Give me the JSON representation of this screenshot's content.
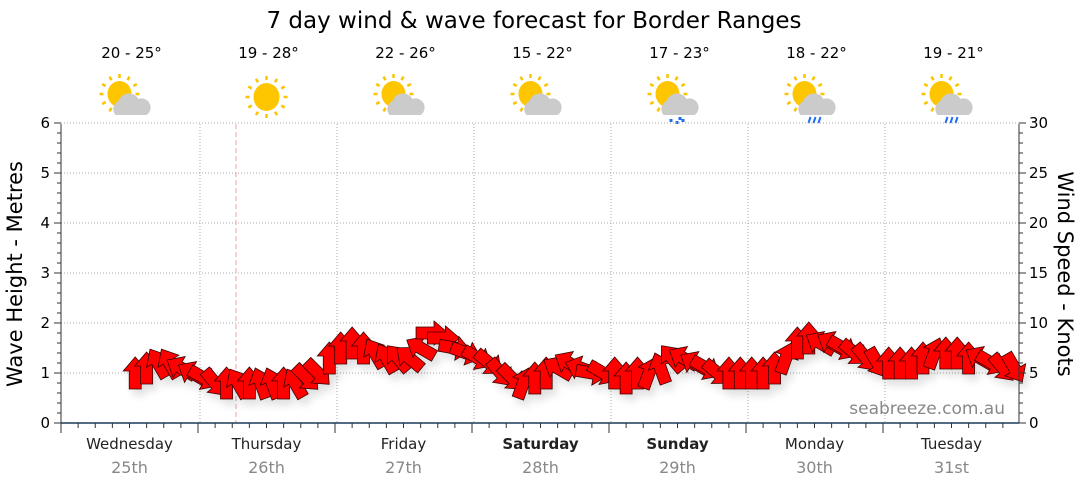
{
  "chart_data": {
    "type": "scatter",
    "title": "7 day wind & wave forecast for Border Ranges",
    "ylabel_left": "Wave Height - Metres",
    "ylabel_right": "Wind Speed - Knots",
    "ylim_left": [
      0,
      6
    ],
    "ylim_right": [
      0,
      30
    ],
    "yticks_left": [
      "0",
      "1",
      "2",
      "3",
      "4",
      "5",
      "6"
    ],
    "yticks_right": [
      "0",
      "5",
      "10",
      "15",
      "20",
      "25",
      "30"
    ],
    "grid": true,
    "watermark": "seabreeze.com.au",
    "days": [
      {
        "name": "Wednesday",
        "date": "25th",
        "bold": false,
        "temp": "20 - 25°",
        "icon": "sun-cloud-icon"
      },
      {
        "name": "Thursday",
        "date": "26th",
        "bold": false,
        "temp": "19 - 28°",
        "icon": "sun-icon"
      },
      {
        "name": "Friday",
        "date": "27th",
        "bold": false,
        "temp": "22 - 26°",
        "icon": "sun-cloud-icon"
      },
      {
        "name": "Saturday",
        "date": "28th",
        "bold": true,
        "temp": "15 - 22°",
        "icon": "sun-cloud-icon"
      },
      {
        "name": "Sunday",
        "date": "29th",
        "bold": true,
        "temp": "17 - 23°",
        "icon": "sun-cloud-drizzle-icon"
      },
      {
        "name": "Monday",
        "date": "30th",
        "bold": false,
        "temp": "18 - 22°",
        "icon": "sun-cloud-rain-icon"
      },
      {
        "name": "Tuesday",
        "date": "31st",
        "bold": false,
        "temp": "19 - 21°",
        "icon": "sun-cloud-rain-icon"
      }
    ],
    "now_hour": 31,
    "wind_series": {
      "name": "Wind (knots, arrow direction degrees)",
      "hours": [
        13,
        15,
        17,
        19,
        21,
        23,
        25,
        27,
        29,
        31,
        33,
        35,
        37,
        39,
        41,
        43,
        45,
        47,
        49,
        51,
        53,
        55,
        57,
        59,
        61,
        63,
        65,
        67,
        69,
        71,
        73,
        75,
        77,
        79,
        81,
        83,
        85,
        87,
        89,
        91,
        93,
        95,
        97,
        99,
        101,
        103,
        105,
        107,
        109,
        111,
        113,
        115,
        117,
        119,
        121,
        123,
        125,
        127,
        129,
        131,
        133,
        135,
        137,
        139,
        141,
        143,
        145,
        147,
        149,
        151,
        153,
        155,
        157,
        159,
        161,
        163,
        165,
        167
      ],
      "speed": [
        5,
        5.5,
        6,
        6,
        5.5,
        5,
        4.5,
        4,
        4,
        4,
        4,
        4,
        4,
        4,
        4,
        4.5,
        5,
        6.5,
        7.5,
        8,
        7.5,
        7,
        6.5,
        6.5,
        6.5,
        7.5,
        9,
        8.5,
        7.5,
        7,
        6.5,
        6,
        5,
        4.5,
        4,
        4.5,
        5,
        5.5,
        6,
        5.5,
        5,
        5,
        5,
        4.5,
        5,
        5,
        5.5,
        6.5,
        6.5,
        6,
        5.5,
        5,
        5,
        5,
        5,
        5,
        5.5,
        6.5,
        8,
        8.5,
        8,
        8,
        7.5,
        7,
        6.5,
        6,
        6,
        6,
        6,
        6.5,
        7,
        7,
        7,
        6.5,
        6.5,
        6,
        5.5,
        5.5
      ],
      "direction": [
        0,
        0,
        330,
        330,
        300,
        300,
        120,
        140,
        0,
        330,
        0,
        340,
        340,
        0,
        330,
        135,
        135,
        0,
        0,
        0,
        0,
        330,
        330,
        320,
        310,
        300,
        90,
        90,
        100,
        110,
        120,
        130,
        140,
        135,
        20,
        0,
        0,
        300,
        300,
        290,
        100,
        120,
        0,
        0,
        0,
        20,
        340,
        320,
        300,
        300,
        120,
        130,
        0,
        0,
        0,
        0,
        0,
        20,
        0,
        0,
        300,
        300,
        120,
        130,
        140,
        150,
        0,
        0,
        0,
        0,
        20,
        0,
        0,
        0,
        300,
        120,
        140,
        150
      ]
    }
  }
}
